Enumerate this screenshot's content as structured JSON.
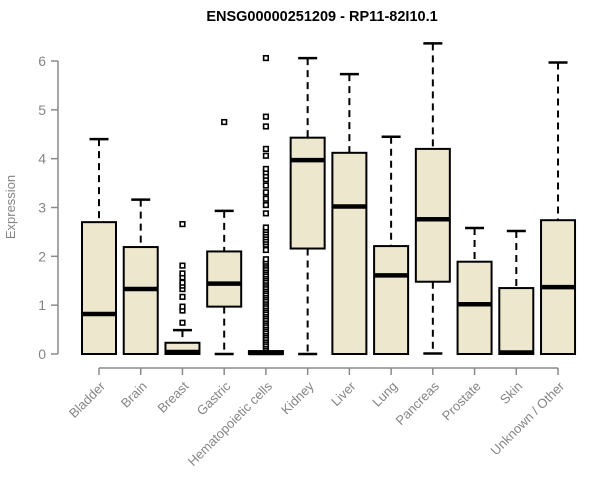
{
  "chart_data": {
    "type": "boxplot",
    "title": "ENSG00000251209 - RP11-82I10.1",
    "ylabel": "Expression",
    "xlabel": "",
    "ylim": [
      0,
      6
    ],
    "yticks": [
      0,
      1,
      2,
      3,
      4,
      5,
      6
    ],
    "grid": false,
    "legend": "none",
    "categories": [
      "Bladder",
      "Brain",
      "Breast",
      "Gastric",
      "Hematopoietic cells",
      "Kidney",
      "Liver",
      "Lung",
      "Pancreas",
      "Prostate",
      "Skin",
      "Unknown / Other"
    ],
    "series": [
      {
        "name": "Bladder",
        "whisker_low": 0,
        "q1": 0,
        "median": 0.82,
        "q3": 2.7,
        "whisker_high": 4.4,
        "outliers": []
      },
      {
        "name": "Brain",
        "whisker_low": 0,
        "q1": 0,
        "median": 1.33,
        "q3": 2.19,
        "whisker_high": 3.16,
        "outliers": []
      },
      {
        "name": "Breast",
        "whisker_low": 0,
        "q1": 0,
        "median": 0.04,
        "q3": 0.23,
        "whisker_high": 0.49,
        "outliers": [
          0.64,
          0.89,
          0.97,
          1.17,
          1.33,
          1.4,
          1.46,
          1.57,
          1.65,
          1.81,
          2.66
        ]
      },
      {
        "name": "Gastric",
        "whisker_low": 0,
        "q1": 0.97,
        "median": 1.44,
        "q3": 2.1,
        "whisker_high": 2.93,
        "outliers": [
          4.75
        ]
      },
      {
        "name": "Hematopoietic cells",
        "whisker_low": 0,
        "q1": 0,
        "median": 0.02,
        "q3": 0.06,
        "whisker_high": 0.08,
        "outliers": [
          0.12,
          0.16,
          0.2,
          0.25,
          0.29,
          0.33,
          0.38,
          0.42,
          0.46,
          0.51,
          0.55,
          0.59,
          0.64,
          0.68,
          0.72,
          0.77,
          0.81,
          0.85,
          0.9,
          0.94,
          0.98,
          1.03,
          1.07,
          1.11,
          1.16,
          1.2,
          1.24,
          1.29,
          1.33,
          1.37,
          1.42,
          1.46,
          1.5,
          1.55,
          1.59,
          1.63,
          1.68,
          1.72,
          1.76,
          1.81,
          1.85,
          1.89,
          1.94,
          2.13,
          2.24,
          2.29,
          2.34,
          2.39,
          2.44,
          2.49,
          2.54,
          2.59,
          2.88,
          3.05,
          3.18,
          3.31,
          3.45,
          3.58,
          3.65,
          3.72,
          3.79,
          4.06,
          4.2,
          4.66,
          4.86,
          6.06
        ]
      },
      {
        "name": "Kidney",
        "whisker_low": 0,
        "q1": 2.16,
        "median": 3.97,
        "q3": 4.43,
        "whisker_high": 6.06,
        "outliers": []
      },
      {
        "name": "Liver",
        "whisker_low": 0,
        "q1": 0,
        "median": 3.02,
        "q3": 4.12,
        "whisker_high": 5.73,
        "outliers": []
      },
      {
        "name": "Lung",
        "whisker_low": 0,
        "q1": 0,
        "median": 1.61,
        "q3": 2.21,
        "whisker_high": 4.45,
        "outliers": []
      },
      {
        "name": "Pancreas",
        "whisker_low": 0.01,
        "q1": 1.48,
        "median": 2.76,
        "q3": 4.2,
        "whisker_high": 6.36,
        "outliers": []
      },
      {
        "name": "Prostate",
        "whisker_low": 0,
        "q1": 0,
        "median": 1.02,
        "q3": 1.89,
        "whisker_high": 2.58,
        "outliers": []
      },
      {
        "name": "Skin",
        "whisker_low": 0,
        "q1": 0,
        "median": 0.03,
        "q3": 1.35,
        "whisker_high": 2.52,
        "outliers": []
      },
      {
        "name": "Unknown / Other",
        "whisker_low": 0,
        "q1": 0,
        "median": 1.37,
        "q3": 2.74,
        "whisker_high": 5.97,
        "outliers": []
      }
    ],
    "colors": {
      "background": "#FFFFFF",
      "box_fill": "#EDE7CE",
      "box_border": "#000000",
      "median": "#000000",
      "whisker": "#000000",
      "outlier": "#000000",
      "axis": "#8A8A8A",
      "tick_text": "#858585",
      "title_text": "#000000"
    }
  }
}
